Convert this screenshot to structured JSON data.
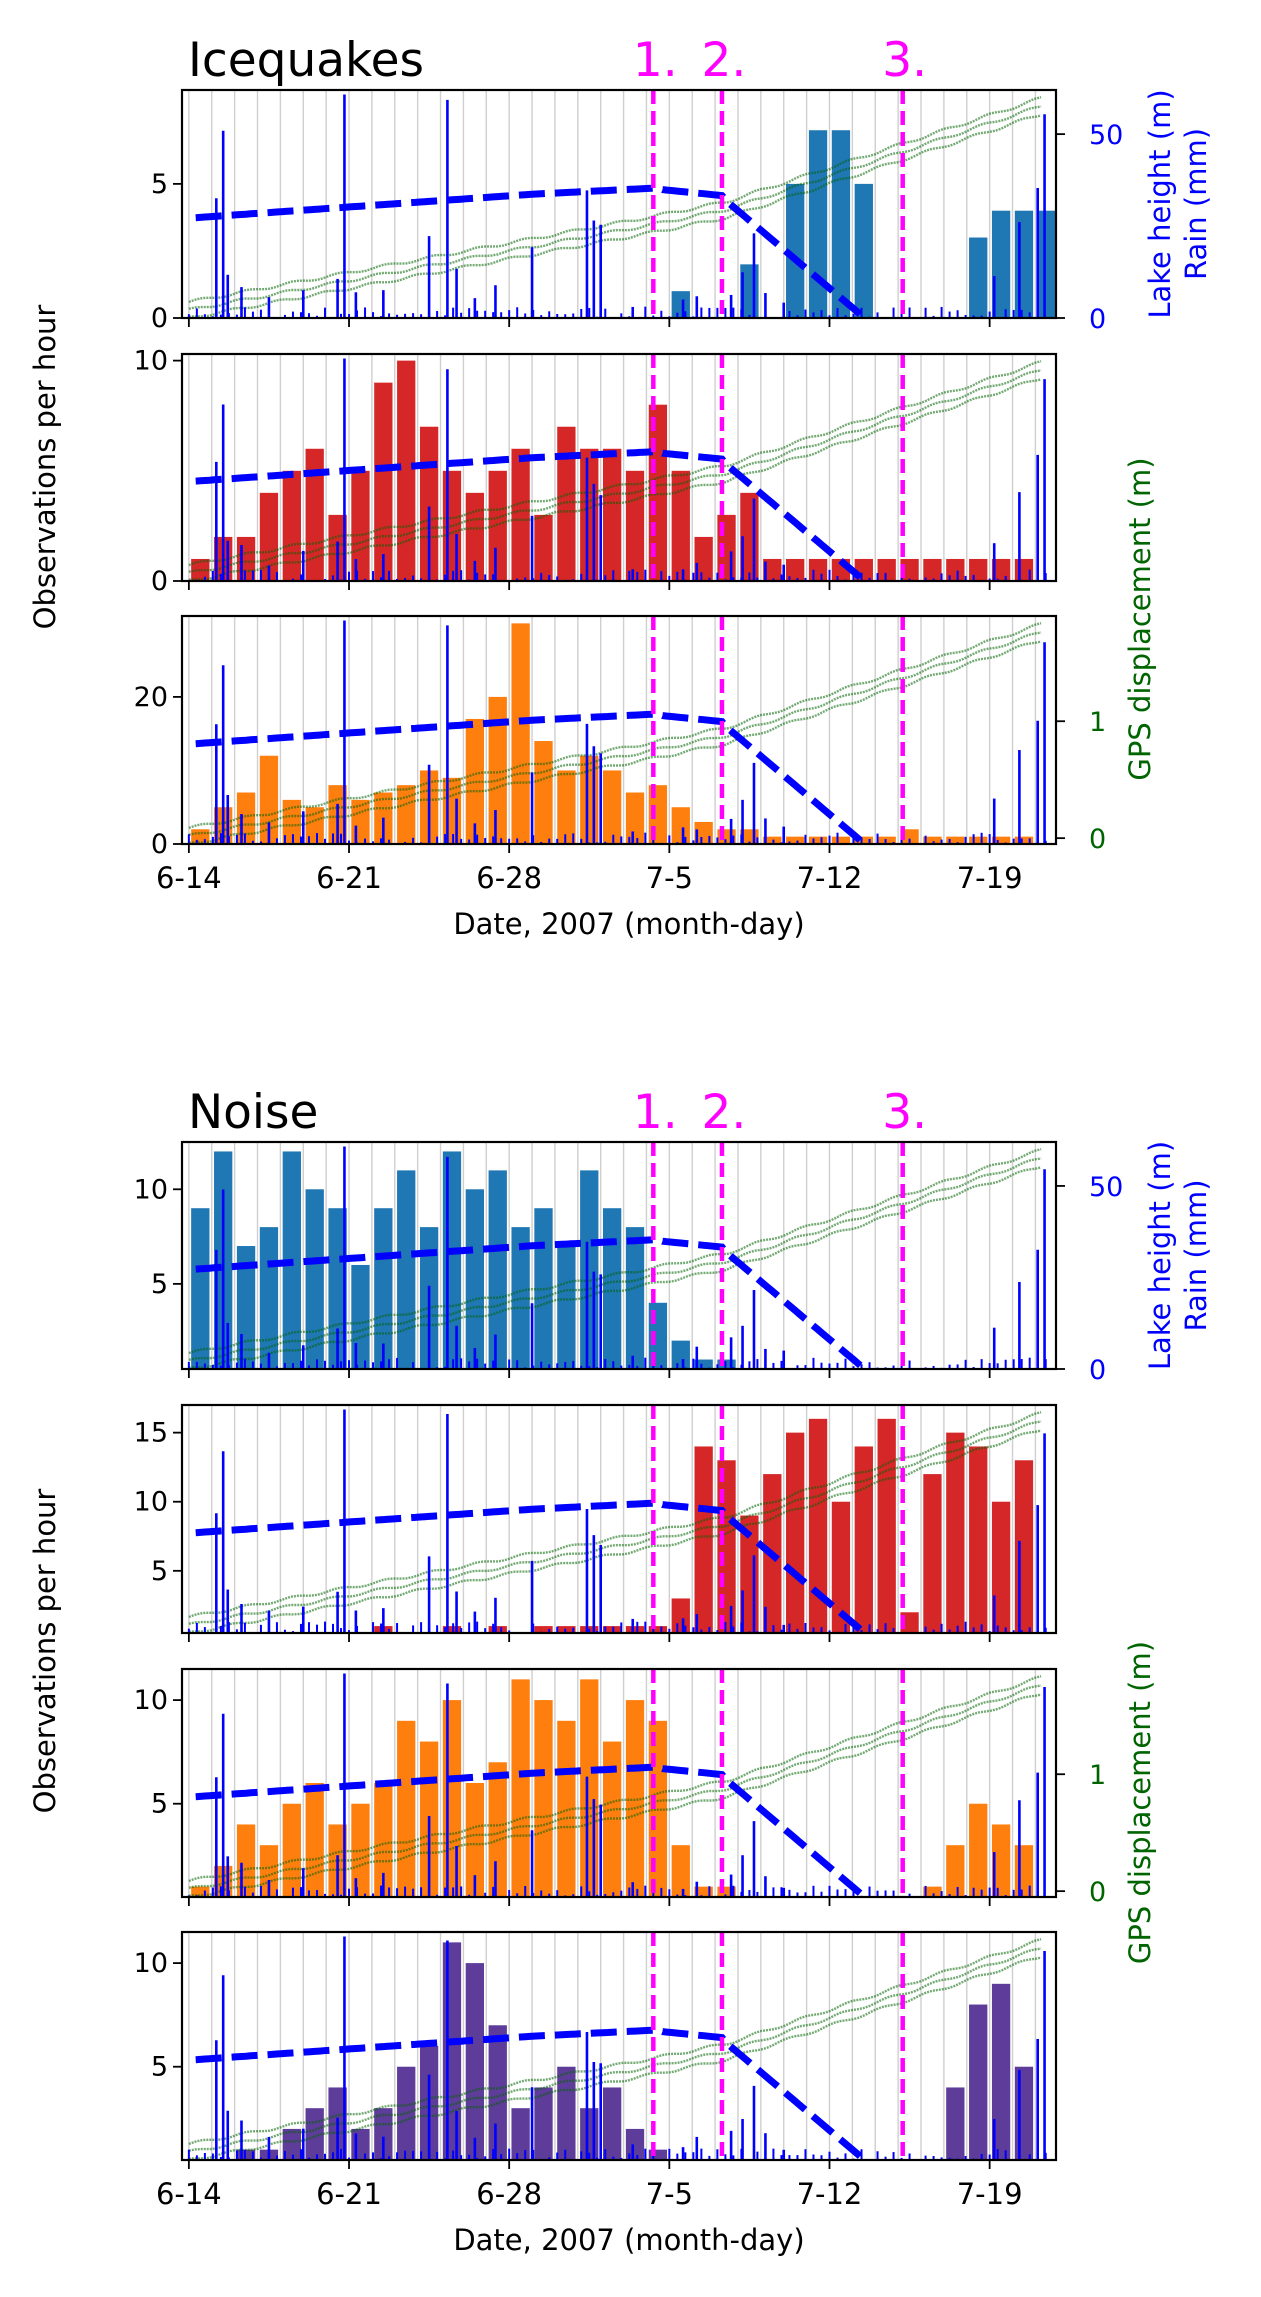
{
  "figure": {
    "x_ticks": [
      "6-14",
      "6-21",
      "6-28",
      "7-5",
      "7-12",
      "7-19"
    ],
    "xlabel": "Date, 2007 (month-day)",
    "ylabel": "Observations per hour",
    "right_axis_label_lake_line1": "Lake height (m)",
    "right_axis_label_lake_line2": "Rain (mm)",
    "right_axis_label_gps": "GPS displacement (m)",
    "event_labels": [
      "1.",
      "2.",
      "3."
    ],
    "event_days": [
      20.3,
      23.3,
      31.2
    ],
    "xlim": [
      -0.3,
      37.9
    ],
    "colors": {
      "lake_rain": "#0000ff",
      "gps": "#006400",
      "events": "#ff00ff",
      "bar_blue": "#1f77b4",
      "bar_red": "#d62728",
      "bar_orange": "#ff7f0e",
      "bar_purple": "#5e3c99"
    }
  },
  "chart_data": [
    {
      "type": "bar",
      "panel_group": "Icequakes",
      "title": "Icequakes",
      "ylim": [
        0,
        8.5
      ],
      "yticks": [
        0,
        5
      ],
      "right_axis": {
        "label": "Lake height (m) / Rain (mm)",
        "ticks": [
          0,
          50
        ],
        "ylim": [
          0,
          62
        ]
      },
      "series": [
        {
          "name": "",
          "color": "#1f77b4",
          "values": [
            0,
            0,
            0,
            0,
            0,
            0,
            0,
            0,
            0,
            0,
            0,
            0,
            0,
            0,
            0,
            0,
            0,
            0,
            0,
            0,
            0,
            1,
            0,
            0,
            2,
            0,
            5,
            7,
            7,
            5,
            0,
            0,
            0,
            0,
            3,
            4,
            4,
            4
          ]
        }
      ]
    },
    {
      "type": "bar",
      "panel_group": "Icequakes",
      "ylim": [
        0,
        10.3
      ],
      "yticks": [
        0,
        10
      ],
      "series": [
        {
          "name": "",
          "color": "#d62728",
          "values": [
            1,
            2,
            2,
            4,
            5,
            6,
            3,
            5,
            9,
            10,
            7,
            5,
            4,
            5,
            6,
            3,
            7,
            6,
            6,
            5,
            8,
            5,
            2,
            3,
            4,
            1,
            1,
            1,
            1,
            1,
            1,
            1,
            1,
            1,
            1,
            1,
            1,
            0
          ]
        }
      ]
    },
    {
      "type": "bar",
      "panel_group": "Icequakes",
      "ylim": [
        0,
        31
      ],
      "yticks": [
        0,
        20
      ],
      "right_axis": {
        "label": "GPS displacement (m)",
        "ticks": [
          0,
          1
        ],
        "ylim": [
          -0.05,
          1.9
        ]
      },
      "series": [
        {
          "name": "",
          "color": "#ff7f0e",
          "values": [
            2,
            5,
            7,
            12,
            6,
            5,
            8,
            6,
            7,
            8,
            10,
            9,
            17,
            20,
            30,
            14,
            10,
            12,
            10,
            7,
            8,
            5,
            3,
            2,
            2,
            1,
            1,
            1,
            1,
            1,
            1,
            2,
            1,
            1,
            1,
            1,
            1,
            0
          ]
        }
      ]
    },
    {
      "type": "bar",
      "panel_group": "Noise",
      "title": "Noise",
      "ylim": [
        0.5,
        12.5
      ],
      "yticks": [
        5,
        10
      ],
      "right_axis": {
        "label": "Lake height (m) / Rain (mm)",
        "ticks": [
          0,
          50
        ],
        "ylim": [
          0,
          62
        ]
      },
      "series": [
        {
          "name": "",
          "color": "#1f77b4",
          "values": [
            9,
            12,
            7,
            8,
            12,
            10,
            9,
            6,
            9,
            11,
            8,
            12,
            10,
            11,
            8,
            9,
            7,
            11,
            9,
            8,
            4,
            2,
            1,
            1,
            0,
            0,
            0,
            0,
            0,
            0,
            0,
            0,
            0,
            0,
            0,
            0,
            0,
            0
          ]
        }
      ]
    },
    {
      "type": "bar",
      "panel_group": "Noise",
      "ylim": [
        0.5,
        17
      ],
      "yticks": [
        5,
        10,
        15
      ],
      "series": [
        {
          "name": "",
          "color": "#d62728",
          "values": [
            0,
            0,
            0,
            0,
            0,
            0,
            0,
            0,
            1,
            0,
            0,
            1,
            0,
            1,
            0,
            1,
            1,
            1,
            1,
            1,
            1,
            3,
            14,
            13,
            9,
            12,
            15,
            16,
            10,
            14,
            16,
            2,
            12,
            15,
            14,
            10,
            13,
            0
          ]
        }
      ]
    },
    {
      "type": "bar",
      "panel_group": "Noise",
      "ylim": [
        0.5,
        11.5
      ],
      "yticks": [
        5,
        10
      ],
      "right_axis": {
        "label": "GPS displacement (m)",
        "ticks": [
          0,
          1
        ],
        "ylim": [
          -0.05,
          1.9
        ]
      },
      "series": [
        {
          "name": "",
          "color": "#ff7f0e",
          "values": [
            1,
            2,
            4,
            3,
            5,
            6,
            4,
            5,
            6,
            9,
            8,
            10,
            6,
            7,
            11,
            10,
            9,
            11,
            8,
            10,
            9,
            3,
            1,
            1,
            0,
            0,
            0,
            0,
            0,
            0,
            0,
            0,
            1,
            3,
            5,
            4,
            3,
            0
          ]
        }
      ]
    },
    {
      "type": "bar",
      "panel_group": "Noise",
      "ylim": [
        0.5,
        11.5
      ],
      "yticks": [
        5,
        10
      ],
      "series": [
        {
          "name": "",
          "color": "#5e3c99",
          "values": [
            0,
            0,
            1,
            1,
            2,
            3,
            4,
            2,
            3,
            5,
            6,
            11,
            10,
            7,
            3,
            4,
            5,
            3,
            4,
            2,
            1,
            0,
            0,
            0,
            0,
            0,
            0,
            0,
            0,
            0,
            0,
            0,
            0,
            4,
            8,
            9,
            5,
            0
          ]
        }
      ]
    }
  ]
}
